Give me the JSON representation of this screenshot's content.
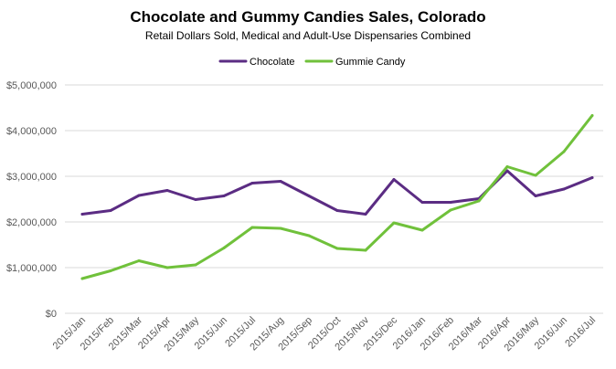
{
  "chart_data": {
    "type": "line",
    "title": "Chocolate and Gummy Candies Sales, Colorado",
    "subtitle": "Retail Dollars Sold, Medical and Adult-Use Dispensaries Combined",
    "xlabel": "",
    "ylabel": "",
    "ylim": [
      0,
      5000000
    ],
    "y_ticks": [
      0,
      1000000,
      2000000,
      3000000,
      4000000,
      5000000
    ],
    "y_tick_labels": [
      "$0",
      "$1,000,000",
      "$2,000,000",
      "$3,000,000",
      "$4,000,000",
      "$5,000,000"
    ],
    "grid": true,
    "legend_position": "top-center",
    "categories": [
      "2015/Jan",
      "2015/Feb",
      "2015/Mar",
      "2015/Apr",
      "2015/May",
      "2015/Jun",
      "2015/Jul",
      "2015/Aug",
      "2015/Sep",
      "2015/Oct",
      "2015/Nov",
      "2015/Dec",
      "2016/Jan",
      "2016/Feb",
      "2016/Mar",
      "2016/Apr",
      "2016/May",
      "2016/Jun",
      "2016/Jul"
    ],
    "series": [
      {
        "name": "Chocolate",
        "color": "#5b2c83",
        "values": [
          2170000,
          2250000,
          2580000,
          2690000,
          2490000,
          2570000,
          2850000,
          2890000,
          2570000,
          2250000,
          2170000,
          2930000,
          2430000,
          2430000,
          2510000,
          3120000,
          2570000,
          2720000,
          2970000
        ]
      },
      {
        "name": "Gummie Candy",
        "color": "#70c13b",
        "values": [
          760000,
          930000,
          1150000,
          1000000,
          1060000,
          1430000,
          1880000,
          1860000,
          1700000,
          1420000,
          1380000,
          1980000,
          1820000,
          2260000,
          2460000,
          3210000,
          3020000,
          3540000,
          4330000
        ]
      }
    ]
  }
}
